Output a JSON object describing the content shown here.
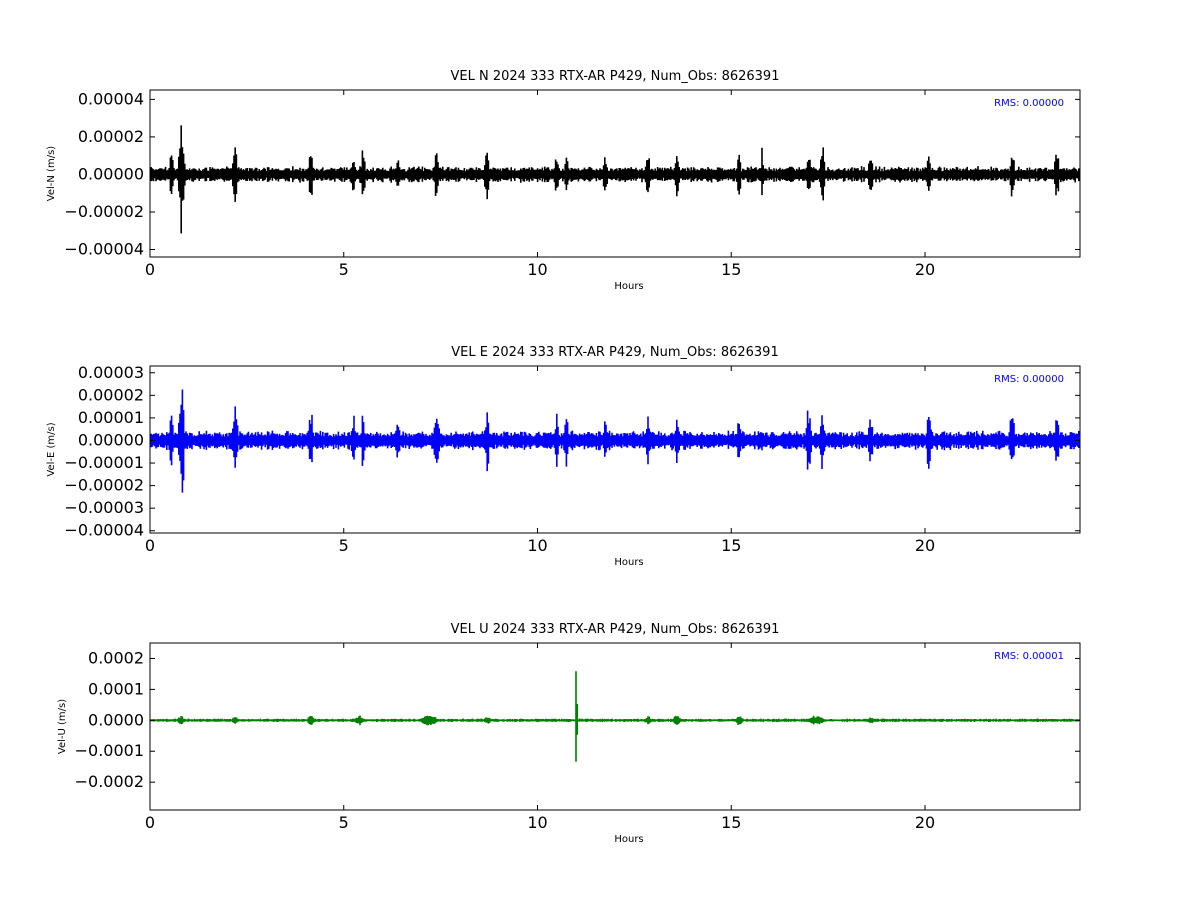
{
  "chart_data": [
    {
      "type": "line",
      "title": "VEL N 2024 333 RTX-AR  P429, Num_Obs: 8626391",
      "xlabel": "Hours",
      "ylabel": "Vel-N (m/s)",
      "xlim": [
        0,
        24
      ],
      "ylim": [
        -4.4e-05,
        4.5e-05
      ],
      "xticks": [
        "0",
        "5",
        "10",
        "15",
        "20"
      ],
      "yticks": [
        "−0.00004",
        "−0.00002",
        "0.00000",
        "0.00002",
        "0.00004"
      ],
      "color": "#000000",
      "rms_label": "RMS:  0.00000",
      "rms_color": "#0000ff",
      "baseline_noise": 4.5e-06,
      "bursts": [
        {
          "x": 0.55,
          "amp": 1.3e-05,
          "w": 0.06
        },
        {
          "x": 0.8,
          "amp": 4.3e-05,
          "w": 0.03
        },
        {
          "x": 0.82,
          "amp": 2.5e-05,
          "w": 0.08
        },
        {
          "x": 2.2,
          "amp": 2e-05,
          "w": 0.06
        },
        {
          "x": 4.15,
          "amp": 1.5e-05,
          "w": 0.06
        },
        {
          "x": 5.25,
          "amp": 1.1e-05,
          "w": 0.06
        },
        {
          "x": 5.5,
          "amp": 2.1e-05,
          "w": 0.05
        },
        {
          "x": 6.4,
          "amp": 1.1e-05,
          "w": 0.06
        },
        {
          "x": 7.4,
          "amp": 1.5e-05,
          "w": 0.06
        },
        {
          "x": 8.7,
          "amp": 1.9e-05,
          "w": 0.06
        },
        {
          "x": 10.5,
          "amp": 1.4e-05,
          "w": 0.06
        },
        {
          "x": 10.75,
          "amp": 1.4e-05,
          "w": 0.06
        },
        {
          "x": 11.75,
          "amp": 1.2e-05,
          "w": 0.06
        },
        {
          "x": 12.85,
          "amp": 1.4e-05,
          "w": 0.06
        },
        {
          "x": 13.6,
          "amp": 1.4e-05,
          "w": 0.06
        },
        {
          "x": 15.2,
          "amp": 1.3e-05,
          "w": 0.06
        },
        {
          "x": 15.8,
          "amp": 1.6e-05,
          "w": 0.03
        },
        {
          "x": 17.0,
          "amp": 1.6e-05,
          "w": 0.06
        },
        {
          "x": 17.35,
          "amp": 1.9e-05,
          "w": 0.06
        },
        {
          "x": 18.6,
          "amp": 1.4e-05,
          "w": 0.06
        },
        {
          "x": 20.1,
          "amp": 1.2e-05,
          "w": 0.06
        },
        {
          "x": 22.25,
          "amp": 1.6e-05,
          "w": 0.06
        },
        {
          "x": 23.4,
          "amp": 1.6e-05,
          "w": 0.06
        }
      ]
    },
    {
      "type": "line",
      "title": "VEL E 2024 333 RTX-AR  P429, Num_Obs: 8626391",
      "xlabel": "Hours",
      "ylabel": "Vel-E (m/s)",
      "xlim": [
        0,
        24
      ],
      "ylim": [
        -4.1e-05,
        3.3e-05
      ],
      "xticks": [
        "0",
        "5",
        "10",
        "15",
        "20"
      ],
      "yticks": [
        "−0.00004",
        "−0.00003",
        "−0.00002",
        "−0.00001",
        "0.00000",
        "0.00001",
        "0.00002",
        "0.00003"
      ],
      "color": "#0000ff",
      "rms_label": "RMS:  0.00000",
      "rms_color": "#0000ff",
      "baseline_noise": 4.5e-06,
      "bursts": [
        {
          "x": 0.55,
          "amp": 1.4e-05,
          "w": 0.06
        },
        {
          "x": 0.85,
          "amp": 3.2e-05,
          "w": 0.03
        },
        {
          "x": 0.8,
          "amp": 1.8e-05,
          "w": 0.08
        },
        {
          "x": 2.2,
          "amp": 2e-05,
          "w": 0.06
        },
        {
          "x": 4.15,
          "amp": 1.6e-05,
          "w": 0.06
        },
        {
          "x": 5.25,
          "amp": 1.2e-05,
          "w": 0.06
        },
        {
          "x": 5.5,
          "amp": 1.4e-05,
          "w": 0.05
        },
        {
          "x": 6.4,
          "amp": 1.1e-05,
          "w": 0.06
        },
        {
          "x": 7.4,
          "amp": 1.9e-05,
          "w": 0.06
        },
        {
          "x": 8.7,
          "amp": 1.5e-05,
          "w": 0.06
        },
        {
          "x": 10.5,
          "amp": 1.3e-05,
          "w": 0.06
        },
        {
          "x": 10.75,
          "amp": 1.6e-05,
          "w": 0.06
        },
        {
          "x": 11.75,
          "amp": 1e-05,
          "w": 0.06
        },
        {
          "x": 12.85,
          "amp": 1.4e-05,
          "w": 0.06
        },
        {
          "x": 13.6,
          "amp": 1.2e-05,
          "w": 0.06
        },
        {
          "x": 15.2,
          "amp": 1.3e-05,
          "w": 0.06
        },
        {
          "x": 17.0,
          "amp": 1.8e-05,
          "w": 0.06
        },
        {
          "x": 17.35,
          "amp": 1.6e-05,
          "w": 0.06
        },
        {
          "x": 18.6,
          "amp": 1.4e-05,
          "w": 0.06
        },
        {
          "x": 20.1,
          "amp": 1.5e-05,
          "w": 0.06
        },
        {
          "x": 22.25,
          "amp": 1.8e-05,
          "w": 0.06
        },
        {
          "x": 23.4,
          "amp": 1.4e-05,
          "w": 0.06
        }
      ]
    },
    {
      "type": "line",
      "title": "VEL U 2024 333 RTX-AR  P429, Num_Obs: 8626391",
      "xlabel": "Hours",
      "ylabel": "Vel-U (m/s)",
      "xlim": [
        0,
        24
      ],
      "ylim": [
        -0.00029,
        0.00025
      ],
      "xticks": [
        "0",
        "5",
        "10",
        "15",
        "20"
      ],
      "yticks": [
        "−0.0002",
        "−0.0001",
        "0.0000",
        "0.0001",
        "0.0002"
      ],
      "color": "#008000",
      "rms_label": "RMS:  0.00001",
      "rms_color": "#0000ff",
      "baseline_noise": 6e-06,
      "bursts": [
        {
          "x": 0.8,
          "amp": 2e-05,
          "w": 0.08
        },
        {
          "x": 2.2,
          "amp": 1.4e-05,
          "w": 0.08
        },
        {
          "x": 4.15,
          "amp": 1.8e-05,
          "w": 0.1
        },
        {
          "x": 5.4,
          "amp": 1.8e-05,
          "w": 0.1
        },
        {
          "x": 7.2,
          "amp": 2.2e-05,
          "w": 0.2
        },
        {
          "x": 8.7,
          "amp": 1.8e-05,
          "w": 0.08
        },
        {
          "x": 11.0,
          "amp": 0.00025,
          "w": 0.015
        },
        {
          "x": 11.01,
          "amp": 0.00029,
          "w": 0.012
        },
        {
          "x": 12.85,
          "amp": 1.6e-05,
          "w": 0.08
        },
        {
          "x": 13.6,
          "amp": 2e-05,
          "w": 0.1
        },
        {
          "x": 15.2,
          "amp": 1.8e-05,
          "w": 0.1
        },
        {
          "x": 17.2,
          "amp": 2e-05,
          "w": 0.2
        },
        {
          "x": 18.6,
          "amp": 1.4e-05,
          "w": 0.08
        }
      ]
    }
  ]
}
